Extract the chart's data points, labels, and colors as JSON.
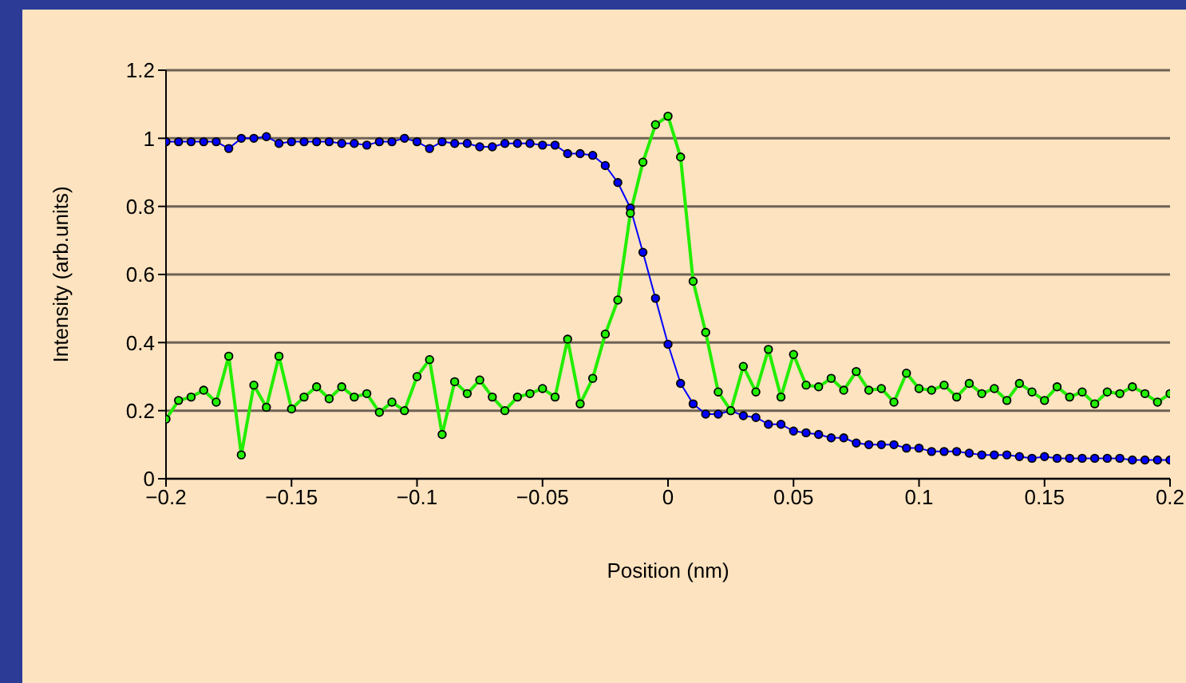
{
  "chart_data": {
    "type": "line",
    "xlabel": "Position (nm)",
    "ylabel": "Intensity (arb.units)",
    "x": [
      -0.2,
      -0.195,
      -0.19,
      -0.185,
      -0.18,
      -0.175,
      -0.17,
      -0.165,
      -0.16,
      -0.155,
      -0.15,
      -0.145,
      -0.14,
      -0.135,
      -0.13,
      -0.125,
      -0.12,
      -0.115,
      -0.11,
      -0.105,
      -0.1,
      -0.095,
      -0.09,
      -0.085,
      -0.08,
      -0.075,
      -0.07,
      -0.065,
      -0.06,
      -0.055,
      -0.05,
      -0.045,
      -0.04,
      -0.035,
      -0.03,
      -0.025,
      -0.02,
      -0.015,
      -0.01,
      -0.005,
      0,
      0.005,
      0.01,
      0.015,
      0.02,
      0.025,
      0.03,
      0.035,
      0.04,
      0.045,
      0.05,
      0.055,
      0.06,
      0.065,
      0.07,
      0.075,
      0.08,
      0.085,
      0.09,
      0.095,
      0.1,
      0.105,
      0.11,
      0.115,
      0.12,
      0.125,
      0.13,
      0.135,
      0.14,
      0.145,
      0.15,
      0.155,
      0.16,
      0.165,
      0.17,
      0.175,
      0.18,
      0.185,
      0.19,
      0.195,
      0.2
    ],
    "series": [
      {
        "color": "#0000ff",
        "values": [
          0.99,
          0.99,
          0.99,
          0.99,
          0.99,
          0.97,
          1.0,
          1.0,
          1.005,
          0.985,
          0.99,
          0.99,
          0.99,
          0.99,
          0.985,
          0.985,
          0.98,
          0.99,
          0.99,
          1.0,
          0.99,
          0.97,
          0.99,
          0.985,
          0.985,
          0.975,
          0.975,
          0.985,
          0.985,
          0.985,
          0.98,
          0.98,
          0.955,
          0.955,
          0.95,
          0.92,
          0.87,
          0.795,
          0.665,
          0.53,
          0.395,
          0.28,
          0.22,
          0.19,
          0.19,
          0.2,
          0.185,
          0.18,
          0.16,
          0.16,
          0.14,
          0.135,
          0.13,
          0.12,
          0.12,
          0.105,
          0.1,
          0.1,
          0.1,
          0.09,
          0.09,
          0.08,
          0.08,
          0.08,
          0.075,
          0.07,
          0.07,
          0.07,
          0.065,
          0.06,
          0.065,
          0.06,
          0.06,
          0.06,
          0.06,
          0.06,
          0.06,
          0.055,
          0.055,
          0.055,
          0.055
        ]
      },
      {
        "color": "#22ee00",
        "values": [
          0.175,
          0.23,
          0.24,
          0.26,
          0.225,
          0.36,
          0.07,
          0.275,
          0.21,
          0.36,
          0.205,
          0.24,
          0.27,
          0.235,
          0.27,
          0.24,
          0.25,
          0.195,
          0.225,
          0.2,
          0.3,
          0.35,
          0.13,
          0.285,
          0.25,
          0.29,
          0.24,
          0.2,
          0.24,
          0.25,
          0.265,
          0.24,
          0.41,
          0.22,
          0.295,
          0.425,
          0.525,
          0.78,
          0.93,
          1.04,
          1.065,
          0.945,
          0.58,
          0.43,
          0.255,
          0.2,
          0.33,
          0.255,
          0.38,
          0.24,
          0.365,
          0.275,
          0.27,
          0.295,
          0.26,
          0.315,
          0.26,
          0.265,
          0.225,
          0.31,
          0.265,
          0.26,
          0.275,
          0.24,
          0.28,
          0.25,
          0.265,
          0.23,
          0.28,
          0.255,
          0.23,
          0.27,
          0.24,
          0.255,
          0.22,
          0.255,
          0.25,
          0.27,
          0.25,
          0.225,
          0.25
        ]
      }
    ],
    "xlim": [
      -0.2,
      0.2
    ],
    "xticks": [
      {
        "value": -0.2,
        "label": "−0.2"
      },
      {
        "value": -0.15,
        "label": "−0.15"
      },
      {
        "value": -0.1,
        "label": "−0.1"
      },
      {
        "value": -0.05,
        "label": "−0.05"
      },
      0,
      0.05,
      0.1,
      0.15,
      0.2
    ],
    "ylim": [
      0,
      1.2
    ],
    "yticks": [
      0,
      0.2,
      0.4,
      0.6,
      0.8,
      1,
      1.2
    ],
    "grid": "y",
    "marker": "circle",
    "line_style": "solid"
  }
}
